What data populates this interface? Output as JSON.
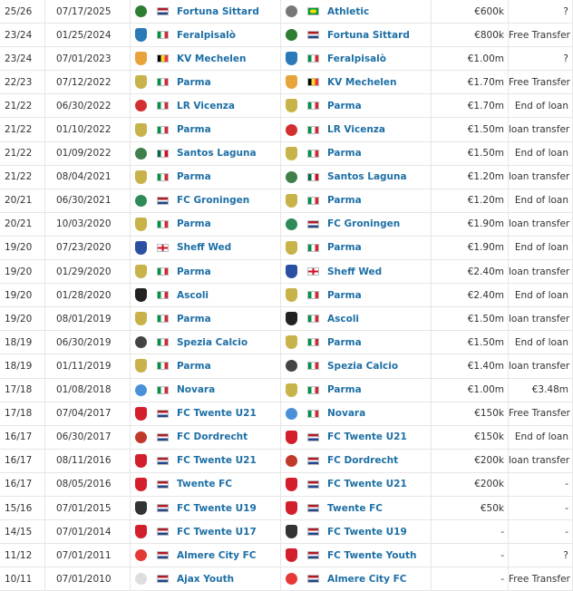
{
  "clubs": {
    "Fortuna Sittard": {
      "flag": "nl",
      "crest": "#2e7d32",
      "shape": "round"
    },
    "Athletic": {
      "flag": "br",
      "crest": "#777777",
      "shape": "round"
    },
    "Feralpisalò": {
      "flag": "it",
      "crest": "#2a7ab8",
      "shape": "shield"
    },
    "KV Mechelen": {
      "flag": "be",
      "crest": "#e8a33a",
      "shape": "shield"
    },
    "Parma": {
      "flag": "it",
      "crest": "#c8b24a",
      "shape": "shield"
    },
    "LR Vicenza": {
      "flag": "it",
      "crest": "#d32f2f",
      "shape": "round"
    },
    "Santos Laguna": {
      "flag": "mx",
      "crest": "#3f7f4a",
      "shape": "round"
    },
    "FC Groningen": {
      "flag": "nl",
      "crest": "#2e8b57",
      "shape": "round"
    },
    "Sheff Wed": {
      "flag": "eng",
      "crest": "#2b4fa3",
      "shape": "shield"
    },
    "Ascoli": {
      "flag": "it",
      "crest": "#222222",
      "shape": "shield"
    },
    "Spezia Calcio": {
      "flag": "it",
      "crest": "#444444",
      "shape": "round"
    },
    "Novara": {
      "flag": "it",
      "crest": "#4a90d9",
      "shape": "round"
    },
    "FC Twente U21": {
      "flag": "nl",
      "crest": "#d21f2b",
      "shape": "shield"
    },
    "FC Dordrecht": {
      "flag": "nl",
      "crest": "#c0392b",
      "shape": "round"
    },
    "Twente FC": {
      "flag": "nl",
      "crest": "#d21f2b",
      "shape": "shield"
    },
    "FC Twente U19": {
      "flag": "nl",
      "crest": "#333333",
      "shape": "shield"
    },
    "FC Twente U17": {
      "flag": "nl",
      "crest": "#d21f2b",
      "shape": "shield"
    },
    "FC Twente Youth": {
      "flag": "nl",
      "crest": "#d21f2b",
      "shape": "shield"
    },
    "Almere City FC": {
      "flag": "nl",
      "crest": "#e53935",
      "shape": "round"
    },
    "Ajax Youth": {
      "flag": "nl",
      "crest": "#dddddd",
      "shape": "round"
    }
  },
  "transfers": [
    {
      "season": "25/26",
      "date": "07/17/2025",
      "from": "Fortuna Sittard",
      "to": "Athletic",
      "value": "€600k",
      "fee": "?"
    },
    {
      "season": "23/24",
      "date": "01/25/2024",
      "from": "Feralpisalò",
      "to": "Fortuna Sittard",
      "value": "€800k",
      "fee": "Free Transfer"
    },
    {
      "season": "23/24",
      "date": "07/01/2023",
      "from": "KV Mechelen",
      "to": "Feralpisalò",
      "value": "€1.00m",
      "fee": "?"
    },
    {
      "season": "22/23",
      "date": "07/12/2022",
      "from": "Parma",
      "to": "KV Mechelen",
      "value": "€1.70m",
      "fee": "Free Transfer"
    },
    {
      "season": "21/22",
      "date": "06/30/2022",
      "from": "LR Vicenza",
      "to": "Parma",
      "value": "€1.70m",
      "fee": "End of loan"
    },
    {
      "season": "21/22",
      "date": "01/10/2022",
      "from": "Parma",
      "to": "LR Vicenza",
      "value": "€1.50m",
      "fee": "loan transfer"
    },
    {
      "season": "21/22",
      "date": "01/09/2022",
      "from": "Santos Laguna",
      "to": "Parma",
      "value": "€1.50m",
      "fee": "End of loan"
    },
    {
      "season": "21/22",
      "date": "08/04/2021",
      "from": "Parma",
      "to": "Santos Laguna",
      "value": "€1.20m",
      "fee": "loan transfer"
    },
    {
      "season": "20/21",
      "date": "06/30/2021",
      "from": "FC Groningen",
      "to": "Parma",
      "value": "€1.20m",
      "fee": "End of loan"
    },
    {
      "season": "20/21",
      "date": "10/03/2020",
      "from": "Parma",
      "to": "FC Groningen",
      "value": "€1.90m",
      "fee": "loan transfer"
    },
    {
      "season": "19/20",
      "date": "07/23/2020",
      "from": "Sheff Wed",
      "to": "Parma",
      "value": "€1.90m",
      "fee": "End of loan"
    },
    {
      "season": "19/20",
      "date": "01/29/2020",
      "from": "Parma",
      "to": "Sheff Wed",
      "value": "€2.40m",
      "fee": "loan transfer"
    },
    {
      "season": "19/20",
      "date": "01/28/2020",
      "from": "Ascoli",
      "to": "Parma",
      "value": "€2.40m",
      "fee": "End of loan"
    },
    {
      "season": "19/20",
      "date": "08/01/2019",
      "from": "Parma",
      "to": "Ascoli",
      "value": "€1.50m",
      "fee": "loan transfer"
    },
    {
      "season": "18/19",
      "date": "06/30/2019",
      "from": "Spezia Calcio",
      "to": "Parma",
      "value": "€1.50m",
      "fee": "End of loan"
    },
    {
      "season": "18/19",
      "date": "01/11/2019",
      "from": "Parma",
      "to": "Spezia Calcio",
      "value": "€1.40m",
      "fee": "loan transfer"
    },
    {
      "season": "17/18",
      "date": "01/08/2018",
      "from": "Novara",
      "to": "Parma",
      "value": "€1.00m",
      "fee": "€3.48m"
    },
    {
      "season": "17/18",
      "date": "07/04/2017",
      "from": "FC Twente U21",
      "to": "Novara",
      "value": "€150k",
      "fee": "Free Transfer"
    },
    {
      "season": "16/17",
      "date": "06/30/2017",
      "from": "FC Dordrecht",
      "to": "FC Twente U21",
      "value": "€150k",
      "fee": "End of loan"
    },
    {
      "season": "16/17",
      "date": "08/11/2016",
      "from": "FC Twente U21",
      "to": "FC Dordrecht",
      "value": "€200k",
      "fee": "loan transfer"
    },
    {
      "season": "16/17",
      "date": "08/05/2016",
      "from": "Twente FC",
      "to": "FC Twente U21",
      "value": "€200k",
      "fee": "-"
    },
    {
      "season": "15/16",
      "date": "07/01/2015",
      "from": "FC Twente U19",
      "to": "Twente FC",
      "value": "€50k",
      "fee": "-"
    },
    {
      "season": "14/15",
      "date": "07/01/2014",
      "from": "FC Twente U17",
      "to": "FC Twente U19",
      "value": "-",
      "fee": "-"
    },
    {
      "season": "11/12",
      "date": "07/01/2011",
      "from": "Almere City FC",
      "to": "FC Twente Youth",
      "value": "-",
      "fee": "?"
    },
    {
      "season": "10/11",
      "date": "07/01/2010",
      "from": "Ajax Youth",
      "to": "Almere City FC",
      "value": "-",
      "fee": "Free Transfer"
    }
  ]
}
